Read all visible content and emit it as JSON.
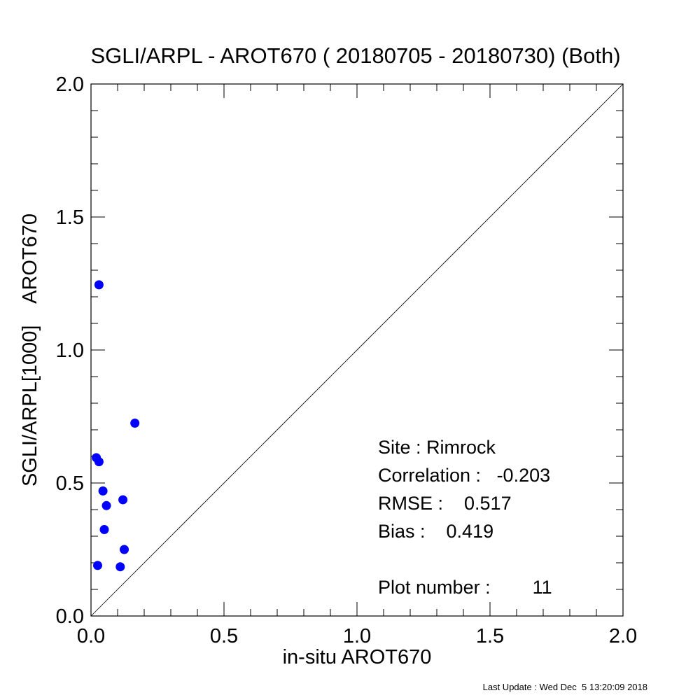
{
  "chart_data": {
    "type": "scatter",
    "title": "SGLI/ARPL - AROT670 ( 20180705 - 20180730) (Both)",
    "xlabel": "in-situ AROT670",
    "ylabel": "SGLI/ARPL[1000]    AROT670",
    "xlim": [
      0.0,
      2.0
    ],
    "ylim": [
      0.0,
      2.0
    ],
    "xticks": [
      "0.0",
      "0.5",
      "1.0",
      "1.5",
      "2.0"
    ],
    "yticks": [
      "0.0",
      "0.5",
      "1.0",
      "1.5",
      "2.0"
    ],
    "reference_line": "1:1",
    "grid": false,
    "series": [
      {
        "color": "#0000ff",
        "points": [
          {
            "x": 0.03,
            "y": 1.245
          },
          {
            "x": 0.165,
            "y": 0.725
          },
          {
            "x": 0.02,
            "y": 0.595
          },
          {
            "x": 0.03,
            "y": 0.58
          },
          {
            "x": 0.045,
            "y": 0.47
          },
          {
            "x": 0.12,
            "y": 0.437
          },
          {
            "x": 0.058,
            "y": 0.415
          },
          {
            "x": 0.05,
            "y": 0.325
          },
          {
            "x": 0.125,
            "y": 0.25
          },
          {
            "x": 0.025,
            "y": 0.19
          },
          {
            "x": 0.11,
            "y": 0.185
          }
        ]
      }
    ],
    "annotations": {
      "site": "Site : Rimrock",
      "correlation": "Correlation :   -0.203",
      "rmse": "RMSE :    0.517",
      "bias": "Bias :    0.419",
      "plot_number": "Plot number :        11"
    }
  },
  "footer": {
    "last_update": "Last Update : Wed Dec  5 13:20:09 2018"
  }
}
